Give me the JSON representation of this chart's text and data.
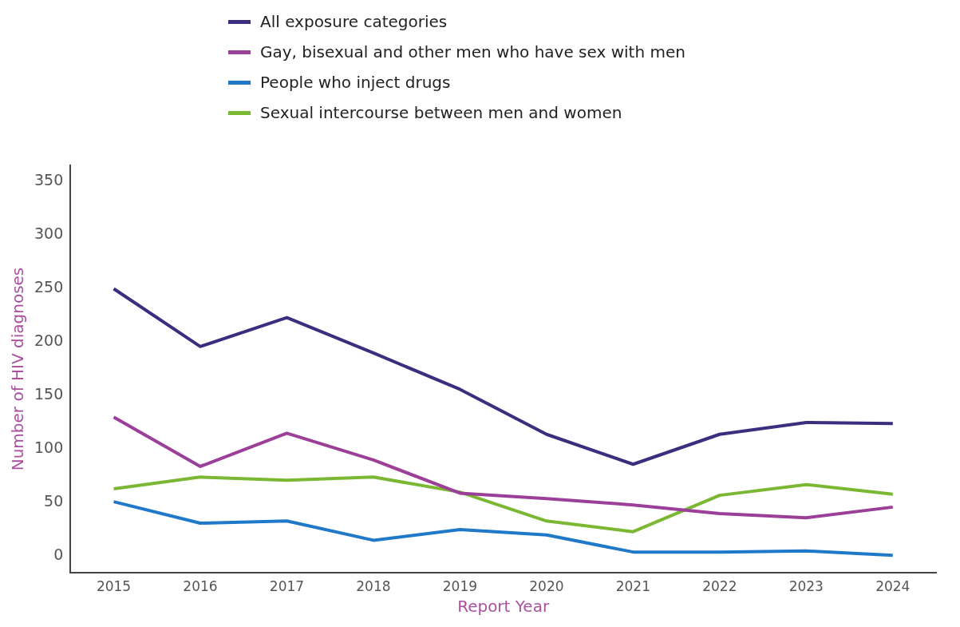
{
  "chart_data": {
    "type": "line",
    "categories": [
      "2015",
      "2016",
      "2017",
      "2018",
      "2019",
      "2020",
      "2021",
      "2022",
      "2023",
      "2024"
    ],
    "series": [
      {
        "name": "All exposure categories",
        "color": "#3a2f7f",
        "values": [
          250,
          196,
          223,
          190,
          156,
          114,
          86,
          114,
          125,
          124
        ]
      },
      {
        "name": "Gay, bisexual and other men who have sex with men",
        "color": "#9b3f98",
        "values": [
          130,
          84,
          115,
          90,
          59,
          54,
          48,
          40,
          36,
          46
        ]
      },
      {
        "name": "People who inject drugs",
        "color": "#1f78c8",
        "values": [
          51,
          31,
          33,
          15,
          25,
          20,
          4,
          4,
          5,
          1
        ]
      },
      {
        "name": "Sexual intercourse between men and women",
        "color": "#7ab833",
        "values": [
          63,
          74,
          71,
          74,
          60,
          33,
          23,
          57,
          67,
          58
        ]
      }
    ],
    "xlabel": "Report Year",
    "ylabel": "Number of HIV diagnoses",
    "ylim": [
      -15,
      365
    ],
    "yticks": [
      0,
      50,
      100,
      150,
      200,
      250,
      300,
      350
    ],
    "grid": false,
    "legend": "top",
    "marker": "none",
    "line_style": "solid"
  }
}
